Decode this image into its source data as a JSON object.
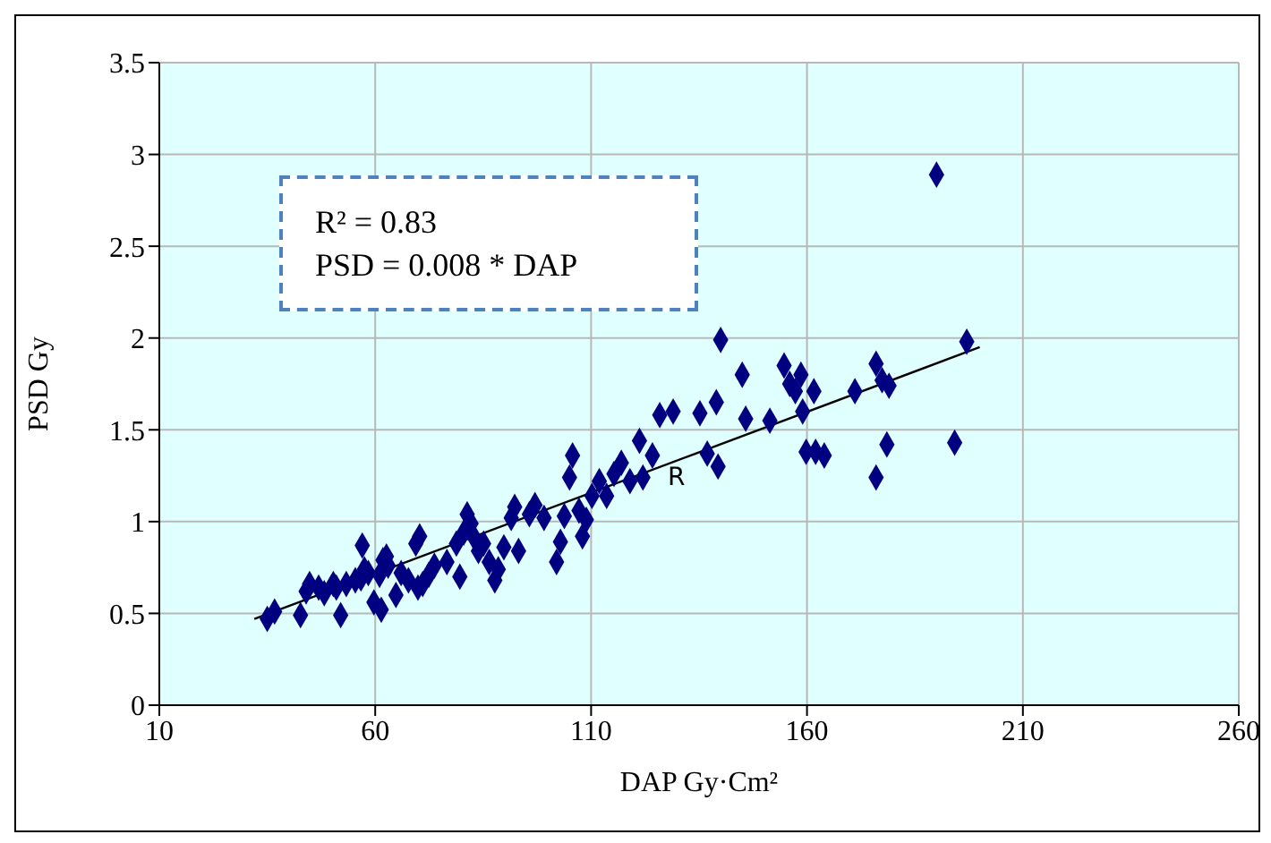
{
  "chart_data": {
    "type": "scatter",
    "xlabel": "DAP Gy·Cm²",
    "ylabel": "PSD Gy",
    "xlim": [
      10,
      260
    ],
    "xticks": [
      10,
      60,
      110,
      160,
      210,
      260
    ],
    "ylim": [
      0,
      3.5
    ],
    "yticks": [
      0,
      0.5,
      1,
      1.5,
      2,
      2.5,
      3,
      3.5
    ],
    "grid": true,
    "marker": "diamond",
    "annotations": [
      "R² = 0.83\nPSD = 0.008 * DAP",
      "R"
    ],
    "series": [
      {
        "color": "#000080",
        "x": [
          35,
          36.7,
          42.7,
          44,
          44.8,
          46.9,
          48.2,
          50.3,
          52,
          51,
          53.3,
          55.4,
          56.7,
          57.5,
          57,
          58.4,
          59.7,
          61,
          61.8,
          62.6,
          63,
          61.4,
          64.8,
          66,
          67.7,
          69.4,
          70.3,
          71,
          69.9,
          72.4,
          73.7,
          76.6,
          78.8,
          79.6,
          80.5,
          81.3,
          82.2,
          83,
          83.9,
          85.1,
          86.4,
          87.7,
          88.5,
          89.8,
          91.5,
          92.3,
          93.2,
          95.7,
          97,
          99.1,
          102,
          102.9,
          103.8,
          105,
          105.7,
          107.2,
          108,
          108.9,
          110.2,
          111.9,
          113.6,
          115.3,
          117,
          119,
          121.2,
          122,
          124.2,
          125.9,
          129,
          135.2,
          139,
          136.9,
          139.4,
          140,
          145,
          145.8,
          151.4,
          154.7,
          156,
          157.3,
          158.6,
          161.6,
          159,
          159.8,
          162,
          164,
          171.1,
          176,
          177.4,
          179,
          176,
          178.5,
          190,
          194.2,
          197
        ],
        "values": [
          0.47,
          0.51,
          0.49,
          0.62,
          0.66,
          0.64,
          0.61,
          0.66,
          0.49,
          0.64,
          0.66,
          0.68,
          0.69,
          0.74,
          0.87,
          0.72,
          0.56,
          0.71,
          0.79,
          0.81,
          0.76,
          0.52,
          0.6,
          0.72,
          0.68,
          0.88,
          0.92,
          0.66,
          0.64,
          0.71,
          0.76,
          0.78,
          0.88,
          0.7,
          0.94,
          1.04,
          0.99,
          0.91,
          0.84,
          0.88,
          0.78,
          0.68,
          0.74,
          0.86,
          1.02,
          1.08,
          0.84,
          1.04,
          1.09,
          1.02,
          0.78,
          0.89,
          1.03,
          1.24,
          1.36,
          1.06,
          0.92,
          1.01,
          1.14,
          1.22,
          1.14,
          1.26,
          1.32,
          1.22,
          1.44,
          1.24,
          1.36,
          1.58,
          1.6,
          1.59,
          1.65,
          1.37,
          1.3,
          1.99,
          1.8,
          1.56,
          1.55,
          1.85,
          1.75,
          1.71,
          1.8,
          1.71,
          1.6,
          1.38,
          1.38,
          1.36,
          1.71,
          1.86,
          1.77,
          1.74,
          1.24,
          1.42,
          2.89,
          1.43,
          1.98
        ]
      },
      {
        "type": "line",
        "color": "#000000",
        "marker": "none",
        "x": [
          32,
          200
        ],
        "values": [
          0.47,
          1.95
        ]
      }
    ]
  }
}
